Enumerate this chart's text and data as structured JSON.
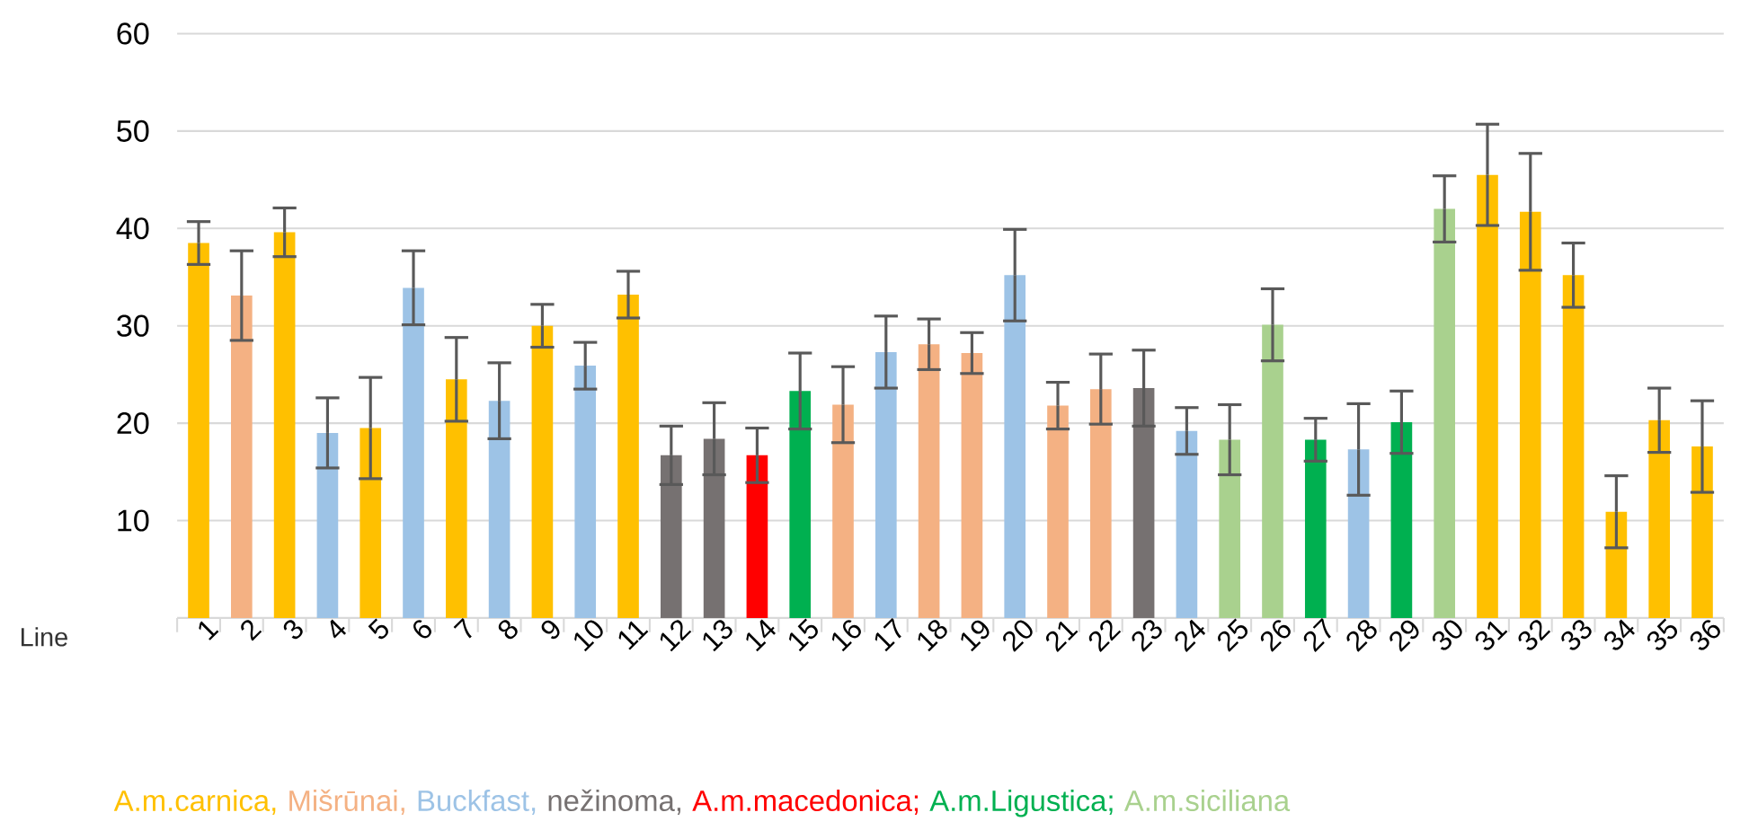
{
  "chart_data": {
    "type": "bar",
    "categories": [
      "1",
      "2",
      "3",
      "4",
      "5",
      "6",
      "7",
      "8",
      "9",
      "10",
      "11",
      "12",
      "13",
      "14",
      "15",
      "16",
      "17",
      "18",
      "19",
      "20",
      "21",
      "22",
      "23",
      "24",
      "25",
      "26",
      "27",
      "28",
      "29",
      "30",
      "31",
      "32",
      "33",
      "34",
      "35",
      "36"
    ],
    "series": [
      {
        "name": "A.m.carnica,",
        "color": "#ffc000",
        "values": [
          38.5,
          null,
          39.6,
          null,
          19.5,
          null,
          24.5,
          null,
          30.0,
          null,
          33.2,
          null,
          null,
          null,
          null,
          null,
          null,
          null,
          null,
          null,
          null,
          null,
          null,
          null,
          null,
          null,
          null,
          null,
          null,
          null,
          45.5,
          41.7,
          35.2,
          10.9,
          20.3,
          17.6
        ],
        "errors": [
          2.2,
          null,
          2.5,
          null,
          5.2,
          null,
          4.3,
          null,
          2.2,
          null,
          2.4,
          null,
          null,
          null,
          null,
          null,
          null,
          null,
          null,
          null,
          null,
          null,
          null,
          null,
          null,
          null,
          null,
          null,
          null,
          null,
          5.2,
          6.0,
          3.3,
          3.7,
          3.3,
          4.7
        ]
      },
      {
        "name": "Mišrūnai,",
        "color": "#f4b183",
        "values": [
          null,
          33.1,
          null,
          null,
          null,
          null,
          null,
          null,
          null,
          null,
          null,
          null,
          null,
          null,
          null,
          21.9,
          null,
          28.1,
          27.2,
          null,
          21.8,
          23.5,
          null,
          null,
          null,
          null,
          null,
          null,
          null,
          null,
          null,
          null,
          null,
          null,
          null,
          null
        ],
        "errors": [
          null,
          4.6,
          null,
          null,
          null,
          null,
          null,
          null,
          null,
          null,
          null,
          null,
          null,
          null,
          null,
          3.9,
          null,
          2.6,
          2.1,
          null,
          2.4,
          3.6,
          null,
          null,
          null,
          null,
          null,
          null,
          null,
          null,
          null,
          null,
          null,
          null,
          null,
          null
        ]
      },
      {
        "name": "Buckfast,",
        "color": "#9dc3e6",
        "values": [
          null,
          null,
          null,
          19.0,
          null,
          33.9,
          null,
          22.3,
          null,
          25.9,
          null,
          null,
          null,
          null,
          null,
          null,
          27.3,
          null,
          null,
          35.2,
          null,
          null,
          null,
          19.2,
          null,
          null,
          null,
          17.3,
          null,
          null,
          null,
          null,
          null,
          null,
          null,
          null
        ],
        "errors": [
          null,
          null,
          null,
          3.6,
          null,
          3.8,
          null,
          3.9,
          null,
          2.4,
          null,
          null,
          null,
          null,
          null,
          null,
          3.7,
          null,
          null,
          4.7,
          null,
          null,
          null,
          2.4,
          null,
          null,
          null,
          4.7,
          null,
          null,
          null,
          null,
          null,
          null,
          null,
          null
        ]
      },
      {
        "name": "nežinoma,",
        "color": "#767171",
        "values": [
          null,
          null,
          null,
          null,
          null,
          null,
          null,
          null,
          null,
          null,
          null,
          16.7,
          18.4,
          null,
          null,
          null,
          null,
          null,
          null,
          null,
          null,
          null,
          23.6,
          null,
          null,
          null,
          null,
          null,
          null,
          null,
          null,
          null,
          null,
          null,
          null,
          null
        ],
        "errors": [
          null,
          null,
          null,
          null,
          null,
          null,
          null,
          null,
          null,
          null,
          null,
          3.0,
          3.7,
          null,
          null,
          null,
          null,
          null,
          null,
          null,
          null,
          null,
          3.9,
          null,
          null,
          null,
          null,
          null,
          null,
          null,
          null,
          null,
          null,
          null,
          null,
          null
        ]
      },
      {
        "name": "A.m.macedonica;",
        "color": "#ff0000",
        "values": [
          null,
          null,
          null,
          null,
          null,
          null,
          null,
          null,
          null,
          null,
          null,
          null,
          null,
          16.7,
          null,
          null,
          null,
          null,
          null,
          null,
          null,
          null,
          null,
          null,
          null,
          null,
          null,
          null,
          null,
          null,
          null,
          null,
          null,
          null,
          null,
          null
        ],
        "errors": [
          null,
          null,
          null,
          null,
          null,
          null,
          null,
          null,
          null,
          null,
          null,
          null,
          null,
          2.8,
          null,
          null,
          null,
          null,
          null,
          null,
          null,
          null,
          null,
          null,
          null,
          null,
          null,
          null,
          null,
          null,
          null,
          null,
          null,
          null,
          null,
          null
        ]
      },
      {
        "name": "A.m.Ligustica;",
        "color": "#00b050",
        "values": [
          null,
          null,
          null,
          null,
          null,
          null,
          null,
          null,
          null,
          null,
          null,
          null,
          null,
          null,
          23.3,
          null,
          null,
          null,
          null,
          null,
          null,
          null,
          null,
          null,
          null,
          null,
          18.3,
          null,
          20.1,
          null,
          null,
          null,
          null,
          null,
          null,
          null
        ],
        "errors": [
          null,
          null,
          null,
          null,
          null,
          null,
          null,
          null,
          null,
          null,
          null,
          null,
          null,
          null,
          3.9,
          null,
          null,
          null,
          null,
          null,
          null,
          null,
          null,
          null,
          null,
          null,
          2.2,
          null,
          3.2,
          null,
          null,
          null,
          null,
          null,
          null,
          null
        ]
      },
      {
        "name": "A.m.siciliana",
        "color": "#a9d18e",
        "values": [
          null,
          null,
          null,
          null,
          null,
          null,
          null,
          null,
          null,
          null,
          null,
          null,
          null,
          null,
          null,
          null,
          null,
          null,
          null,
          null,
          null,
          null,
          null,
          null,
          18.3,
          30.1,
          null,
          null,
          null,
          42.0,
          null,
          null,
          null,
          null,
          null,
          null
        ],
        "errors": [
          null,
          null,
          null,
          null,
          null,
          null,
          null,
          null,
          null,
          null,
          null,
          null,
          null,
          null,
          null,
          null,
          null,
          null,
          null,
          null,
          null,
          null,
          null,
          null,
          3.6,
          3.7,
          null,
          null,
          null,
          3.4,
          null,
          null,
          null,
          null,
          null,
          null
        ]
      }
    ],
    "ylim": [
      0,
      60
    ],
    "yticks": [
      10,
      20,
      30,
      40,
      50,
      60
    ],
    "grid": "y",
    "legend": "bottom",
    "annotations": [
      "Line"
    ]
  }
}
